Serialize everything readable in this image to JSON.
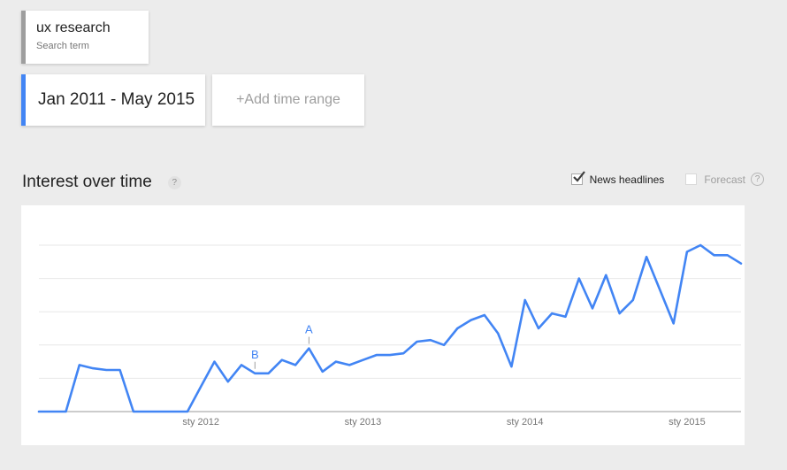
{
  "filters": {
    "term_card": {
      "title": "ux research",
      "subtitle": "Search term"
    },
    "time_card": {
      "label": "Jan 2011 - May 2015"
    },
    "add_time_range": {
      "label": "+Add time range"
    }
  },
  "section": {
    "title": "Interest over time",
    "help_icon": "?",
    "news_headlines_label": "News headlines",
    "news_headlines_checked": true,
    "forecast_label": "Forecast",
    "forecast_checked": false,
    "forecast_help_icon": "?"
  },
  "colors": {
    "line": "#4285f4",
    "accent_blue": "#4285f4",
    "accent_gray": "#9e9e9e",
    "gridline": "#e7e7e7",
    "axis": "#9a9a9a",
    "page_bg": "#ececec",
    "panel_bg": "#ffffff"
  },
  "chart_data": {
    "type": "line",
    "title": "Interest over time",
    "interval": "monthly",
    "x_start": "Jan 2011",
    "x_end": "May 2015",
    "months": [
      "2011-01",
      "2011-02",
      "2011-03",
      "2011-04",
      "2011-05",
      "2011-06",
      "2011-07",
      "2011-08",
      "2011-09",
      "2011-10",
      "2011-11",
      "2011-12",
      "2012-01",
      "2012-02",
      "2012-03",
      "2012-04",
      "2012-05",
      "2012-06",
      "2012-07",
      "2012-08",
      "2012-09",
      "2012-10",
      "2012-11",
      "2012-12",
      "2013-01",
      "2013-02",
      "2013-03",
      "2013-04",
      "2013-05",
      "2013-06",
      "2013-07",
      "2013-08",
      "2013-09",
      "2013-10",
      "2013-11",
      "2013-12",
      "2014-01",
      "2014-02",
      "2014-03",
      "2014-04",
      "2014-05",
      "2014-06",
      "2014-07",
      "2014-08",
      "2014-09",
      "2014-10",
      "2014-11",
      "2014-12",
      "2015-01",
      "2015-02",
      "2015-03",
      "2015-04",
      "2015-05"
    ],
    "values": [
      0,
      0,
      0,
      28,
      26,
      25,
      25,
      0,
      0,
      0,
      0,
      0,
      15,
      30,
      18,
      28,
      23,
      23,
      31,
      28,
      38,
      24,
      30,
      28,
      31,
      34,
      34,
      35,
      42,
      43,
      40,
      50,
      55,
      58,
      47,
      27,
      67,
      50,
      59,
      57,
      80,
      62,
      82,
      59,
      67,
      93,
      73,
      53,
      96,
      100,
      94,
      94,
      89
    ],
    "ylim": [
      0,
      100
    ],
    "gridline_step": 20,
    "grid": true,
    "legend_position": "none",
    "xtick_labels": [
      "sty 2012",
      "sty 2013",
      "sty 2014",
      "sty 2015"
    ],
    "xtick_indices": [
      12,
      24,
      36,
      48
    ],
    "annotations": [
      {
        "label": "A",
        "index": 20,
        "value": 38
      },
      {
        "label": "B",
        "index": 16,
        "value": 23
      }
    ],
    "line_color": "#4285f4"
  }
}
